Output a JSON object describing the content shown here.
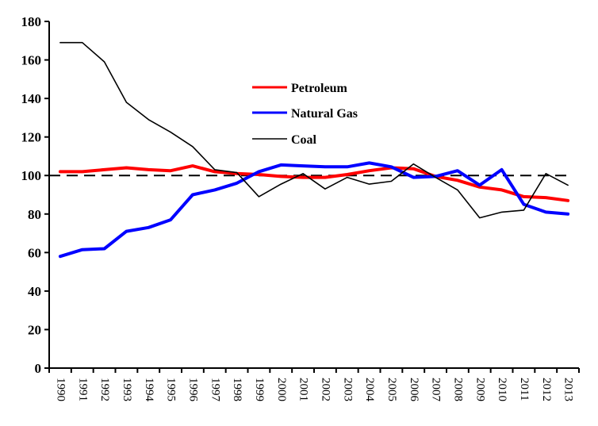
{
  "chart_data": {
    "type": "line",
    "title": "",
    "xlabel": "",
    "ylabel": "",
    "ylim": [
      0,
      180
    ],
    "yticks": [
      0,
      20,
      40,
      60,
      80,
      100,
      120,
      140,
      160,
      180
    ],
    "grid": false,
    "legend_position": "upper-center",
    "categories": [
      "1990",
      "1991",
      "1992",
      "1993",
      "1994",
      "1995",
      "1996",
      "1997",
      "1998",
      "1999",
      "2000",
      "2001",
      "2002",
      "2003",
      "2004",
      "2005",
      "2006",
      "2007",
      "2008",
      "2009",
      "2010",
      "2011",
      "2012",
      "2013"
    ],
    "reference_line": {
      "value": 100,
      "style": "dashed",
      "color": "#000000"
    },
    "series": [
      {
        "name": "Petroleum",
        "color": "#ff0000",
        "values": [
          102,
          102,
          103,
          104,
          103,
          102.5,
          105,
          102,
          101,
          100.5,
          99.5,
          99,
          99,
          100.5,
          102.5,
          104,
          103.5,
          99.5,
          97.5,
          94,
          92.5,
          89,
          88.5,
          87
        ]
      },
      {
        "name": "Natural Gas",
        "color": "#0000ff",
        "values": [
          58,
          61.5,
          62,
          71,
          73,
          77,
          90,
          92.5,
          96,
          102,
          105.5,
          105,
          104.5,
          104.5,
          106.5,
          104.5,
          99,
          99.5,
          102.5,
          95,
          103,
          85,
          81,
          80
        ]
      },
      {
        "name": "Coal",
        "color": "#000000",
        "values": [
          169,
          169,
          159,
          138,
          129,
          122.5,
          115,
          103,
          101.5,
          89,
          95.5,
          101,
          93,
          99,
          95.5,
          97,
          106,
          99,
          92.5,
          78,
          81,
          82,
          101,
          95
        ]
      }
    ]
  }
}
